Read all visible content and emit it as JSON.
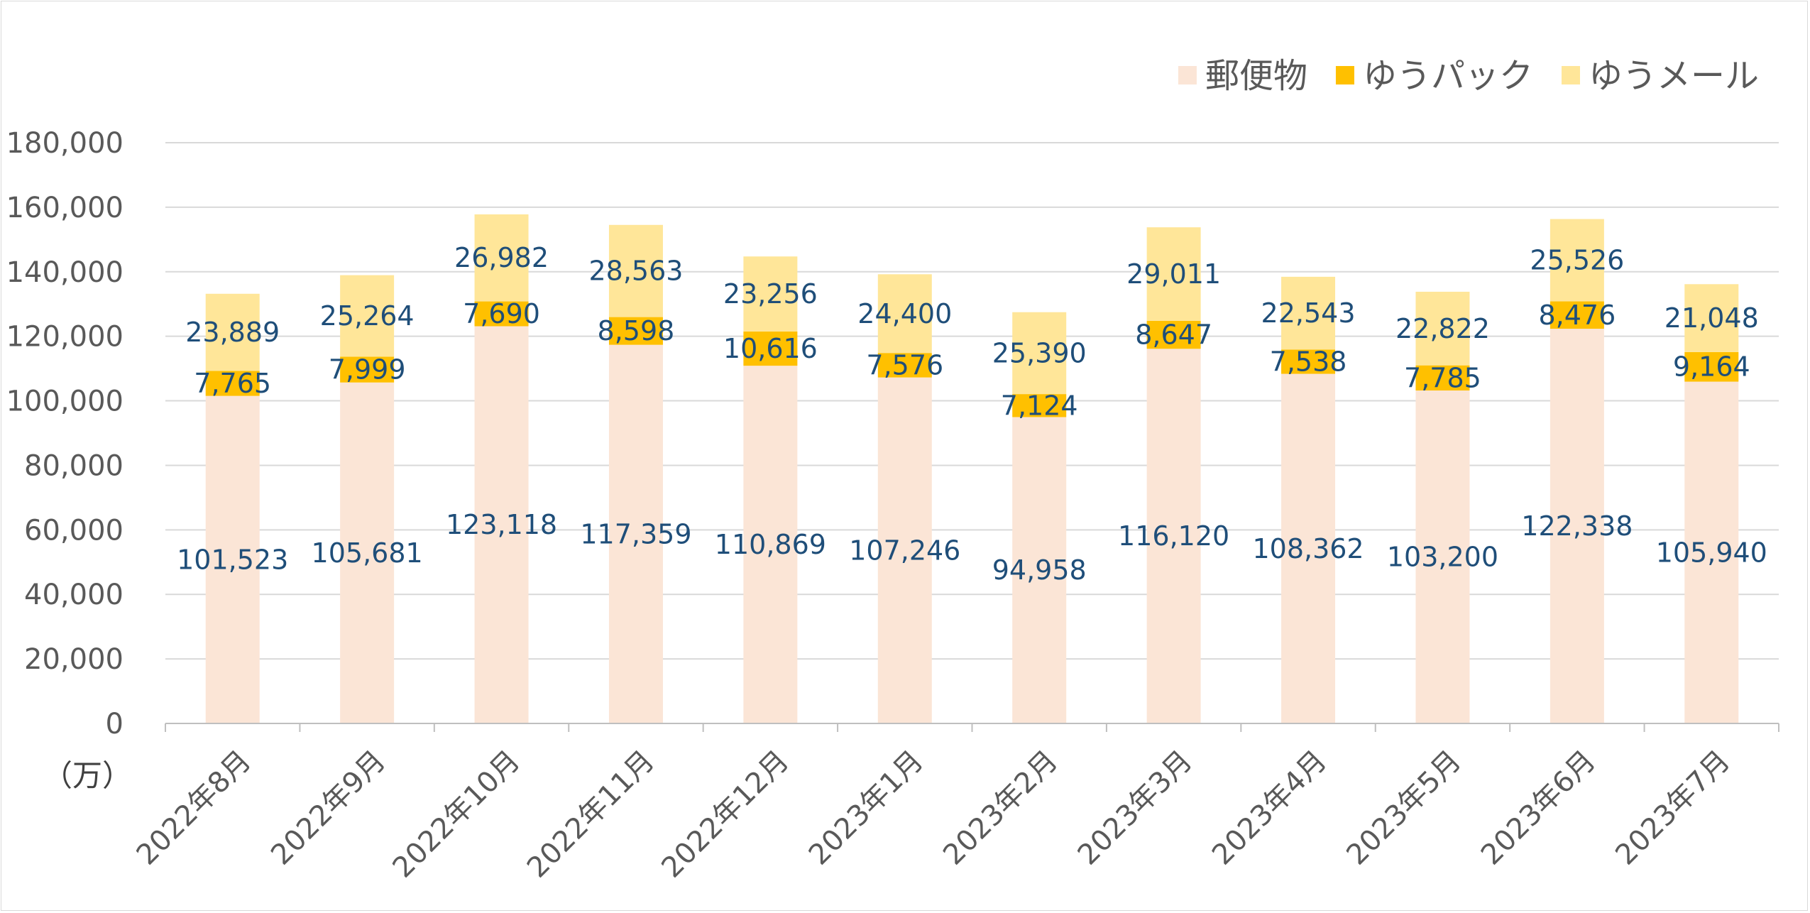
{
  "chart_data": {
    "type": "bar",
    "stacked": true,
    "categories": [
      "2022年8月",
      "2022年9月",
      "2022年10月",
      "2022年11月",
      "2022年12月",
      "2023年1月",
      "2023年2月",
      "2023年3月",
      "2023年4月",
      "2023年5月",
      "2023年6月",
      "2023年7月"
    ],
    "series": [
      {
        "name": "郵便物",
        "color": "#fbe5d6",
        "values": [
          101523,
          105681,
          123118,
          117359,
          110869,
          107246,
          94958,
          116120,
          108362,
          103200,
          122338,
          105940
        ]
      },
      {
        "name": "ゆうパック",
        "color": "#ffc000",
        "values": [
          7765,
          7999,
          7690,
          8598,
          10616,
          7576,
          7124,
          8647,
          7538,
          7785,
          8476,
          9164
        ]
      },
      {
        "name": "ゆうメール",
        "color": "#ffe699",
        "values": [
          23889,
          25264,
          26982,
          28563,
          23256,
          24400,
          25390,
          29011,
          22543,
          22822,
          25526,
          21048
        ]
      }
    ],
    "ylim": [
      0,
      180000
    ],
    "yticks": [
      "0",
      "20,000",
      "40,000",
      "60,000",
      "80,000",
      "100,000",
      "120,000",
      "140,000",
      "160,000",
      "180,000"
    ],
    "unit_label": "（万）",
    "grid": true,
    "legend_position": "top-right",
    "label_color": "#1f4e79"
  }
}
